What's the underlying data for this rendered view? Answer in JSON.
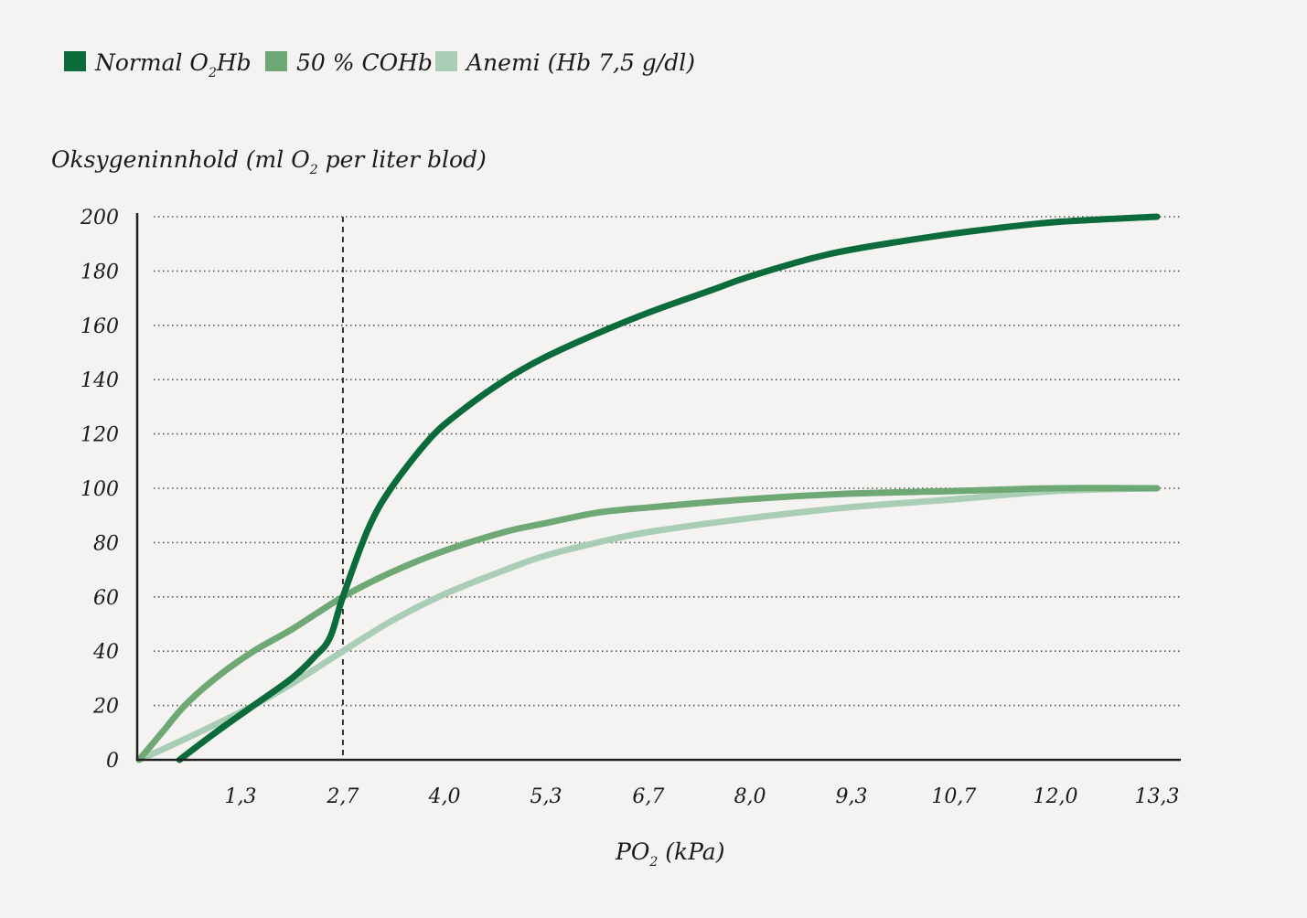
{
  "chart_data": {
    "type": "line",
    "legend": {
      "placement": "top-left",
      "entries": [
        {
          "label_main": "Normal O",
          "label_sub": "2",
          "label_tail": "Hb",
          "color": "#0b6b3a"
        },
        {
          "label_main": "50 % COHb",
          "label_sub": "",
          "label_tail": "",
          "color": "#6ea875"
        },
        {
          "label_main": "Anemi (Hb 7,5 g/dl)",
          "label_sub": "",
          "label_tail": "",
          "color": "#a9cdb5"
        }
      ]
    },
    "ylabel": {
      "main": "Oksygeninnhold (ml O",
      "sub": "2",
      "tail": " per liter blod)"
    },
    "xlabel": {
      "main": "PO",
      "sub": "2",
      "tail": " (kPa)"
    },
    "yticks": [
      "0",
      "20",
      "40",
      "60",
      "80",
      "100",
      "120",
      "140",
      "160",
      "180",
      "200"
    ],
    "xticks": [
      "1,3",
      "2,7",
      "4,0",
      "5,3",
      "6,7",
      "8,0",
      "9,3",
      "10,7",
      "12,0",
      "13,3"
    ],
    "xtick_values": [
      1.33,
      2.67,
      4.0,
      5.33,
      6.67,
      8.0,
      9.33,
      10.67,
      12.0,
      13.33
    ],
    "xlim": [
      0,
      13.6
    ],
    "ylim": [
      0,
      200
    ],
    "grid": "horizontal-dotted",
    "reference_line": {
      "x": 2.67,
      "style": "dashed"
    },
    "series": [
      {
        "name": "Normal O2Hb",
        "color": "#0b6b3a",
        "x": [
          0.53,
          1.0,
          1.5,
          2.0,
          2.3,
          2.5,
          2.67,
          3.0,
          3.3,
          3.8,
          4.2,
          4.8,
          5.3,
          6.0,
          6.7,
          7.5,
          8.0,
          9.0,
          10.0,
          11.0,
          12.0,
          13.33
        ],
        "y": [
          0,
          10,
          20,
          30,
          38,
          45,
          60,
          85,
          100,
          118,
          128,
          140,
          148,
          157,
          165,
          173,
          178,
          186,
          191,
          195,
          198,
          200
        ]
      },
      {
        "name": "50 % COHb",
        "color": "#6ea875",
        "x": [
          0,
          0.3,
          0.6,
          1.0,
          1.5,
          2.0,
          2.67,
          3.3,
          4.0,
          4.8,
          5.3,
          6.0,
          6.7,
          8.0,
          9.3,
          10.7,
          12.0,
          13.33
        ],
        "y": [
          0,
          10,
          20,
          30,
          40,
          48,
          60,
          69,
          77,
          84,
          87,
          91,
          93,
          96,
          98,
          99,
          100,
          100
        ]
      },
      {
        "name": "Anemi (Hb 7,5 g/dl)",
        "color": "#a9cdb5",
        "x": [
          0,
          0.4,
          1.0,
          1.5,
          2.0,
          2.67,
          3.3,
          4.0,
          4.8,
          5.3,
          6.0,
          6.7,
          8.0,
          9.3,
          10.7,
          12.0,
          13.33
        ],
        "y": [
          0,
          5,
          13,
          20,
          28,
          40,
          51,
          61,
          70,
          75,
          80,
          84,
          89,
          93,
          96,
          99,
          100
        ]
      }
    ]
  }
}
